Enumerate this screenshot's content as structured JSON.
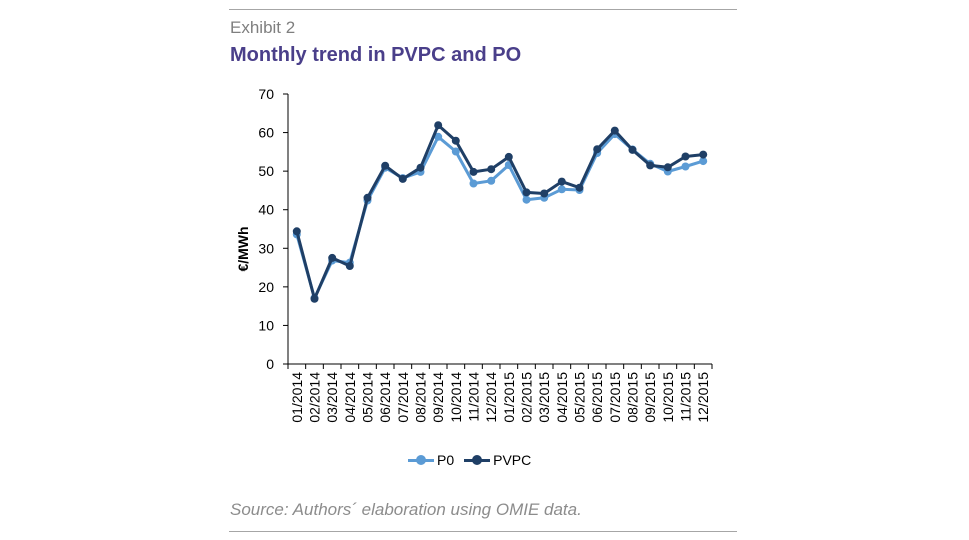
{
  "header": {
    "exhibit": "Exhibit 2",
    "title": "Monthly trend in PVPC and PO"
  },
  "footer": {
    "source": "Source: Authors´ elaboration using OMIE data."
  },
  "colors": {
    "p0": "#5b9bd5",
    "pvpc": "#1f3f66",
    "title": "#4a3f8a"
  },
  "chart_data": {
    "type": "line",
    "title": "Monthly trend in PVPC and PO",
    "xlabel": "",
    "ylabel": "€/MWh",
    "ylim": [
      0,
      70
    ],
    "yticks": [
      0,
      10,
      20,
      30,
      40,
      50,
      60,
      70
    ],
    "grid": false,
    "legend_position": "bottom",
    "categories": [
      "01/2014",
      "02/2014",
      "03/2014",
      "04/2014",
      "05/2014",
      "06/2014",
      "07/2014",
      "08/2014",
      "09/2014",
      "10/2014",
      "11/2014",
      "12/2014",
      "01/2015",
      "02/2015",
      "03/2015",
      "04/2015",
      "05/2015",
      "06/2015",
      "07/2015",
      "08/2015",
      "09/2015",
      "10/2015",
      "11/2015",
      "12/2015"
    ],
    "series": [
      {
        "name": "P0",
        "color": "#5b9bd5",
        "values": [
          33.6,
          17.1,
          26.8,
          26.3,
          42.4,
          50.9,
          48.2,
          49.8,
          58.9,
          55.1,
          46.8,
          47.5,
          51.6,
          42.6,
          43.1,
          45.3,
          45.1,
          54.7,
          59.6,
          55.6,
          51.9,
          49.9,
          51.2,
          52.6
        ]
      },
      {
        "name": "PVPC",
        "color": "#1f3f66",
        "values": [
          34.4,
          16.9,
          27.5,
          25.4,
          43.1,
          51.4,
          48.0,
          50.9,
          61.9,
          57.9,
          49.8,
          50.5,
          53.7,
          44.5,
          44.2,
          47.3,
          45.7,
          55.7,
          60.5,
          55.5,
          51.5,
          51.0,
          53.8,
          54.3
        ]
      }
    ]
  }
}
